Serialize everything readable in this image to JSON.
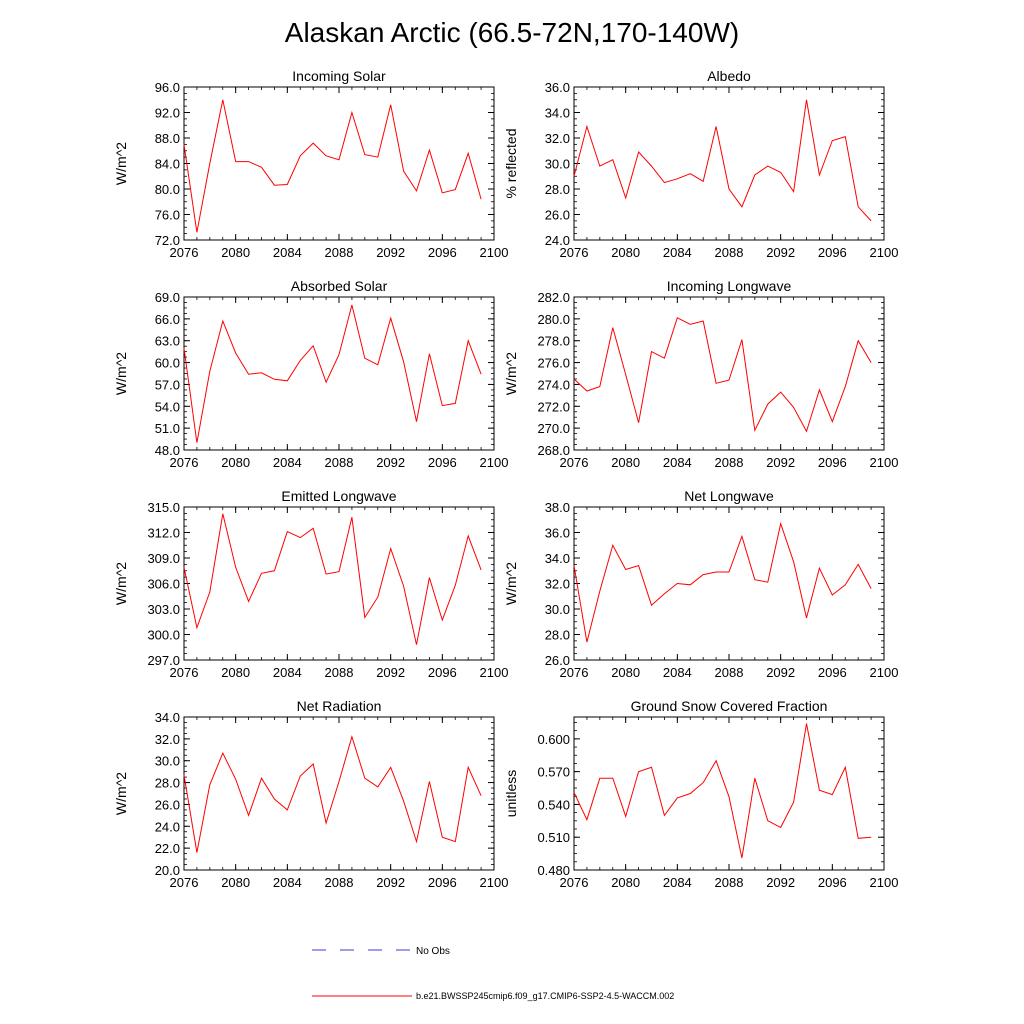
{
  "figure": {
    "title": "Alaskan Arctic (66.5-72N,170-140W)"
  },
  "legend": {
    "obs_label": "No Obs",
    "obs_color": "#3a3ad8",
    "model_label": "b.e21.BWSSP245cmip6.f09_g17.CMIP6-SSP2-4.5-WACCM.002",
    "model_color": "#ff0000"
  },
  "chart_data": [
    {
      "type": "line",
      "title": "Incoming Solar",
      "ylabel": "W/m^2",
      "xlim": [
        2076,
        2100
      ],
      "ylim": [
        72.0,
        96.0
      ],
      "xticks": [
        "2076",
        "2080",
        "2084",
        "2088",
        "2092",
        "2096",
        "2100"
      ],
      "yticks": [
        "72.0",
        "76.0",
        "80.0",
        "84.0",
        "88.0",
        "92.0",
        "96.0"
      ],
      "x": [
        2076,
        2077,
        2078,
        2079,
        2080,
        2081,
        2082,
        2083,
        2084,
        2085,
        2086,
        2087,
        2088,
        2089,
        2090,
        2091,
        2092,
        2093,
        2094,
        2095,
        2096,
        2097,
        2098,
        2099
      ],
      "series": [
        {
          "values": [
            87.0,
            73.2,
            84.0,
            94.0,
            84.3,
            84.3,
            83.4,
            80.6,
            80.7,
            85.2,
            87.2,
            85.2,
            84.6,
            92.0,
            85.4,
            85.0,
            93.2,
            82.8,
            79.7,
            86.1,
            79.4,
            79.9,
            85.6,
            78.4
          ]
        }
      ]
    },
    {
      "type": "line",
      "title": "Albedo",
      "ylabel": "% reflected",
      "xlim": [
        2076,
        2100
      ],
      "ylim": [
        24.0,
        36.0
      ],
      "xticks": [
        "2076",
        "2080",
        "2084",
        "2088",
        "2092",
        "2096",
        "2100"
      ],
      "yticks": [
        "24.0",
        "26.0",
        "28.0",
        "30.0",
        "32.0",
        "34.0",
        "36.0"
      ],
      "x": [
        2076,
        2077,
        2078,
        2079,
        2080,
        2081,
        2082,
        2083,
        2084,
        2085,
        2086,
        2087,
        2088,
        2089,
        2090,
        2091,
        2092,
        2093,
        2094,
        2095,
        2096,
        2097,
        2098,
        2099
      ],
      "series": [
        {
          "values": [
            29.0,
            32.9,
            29.8,
            30.3,
            27.3,
            30.9,
            29.8,
            28.5,
            28.8,
            29.2,
            28.6,
            32.9,
            28.0,
            26.6,
            29.1,
            29.8,
            29.3,
            27.8,
            35.0,
            29.1,
            31.8,
            32.1,
            26.6,
            25.5
          ]
        }
      ]
    },
    {
      "type": "line",
      "title": "Absorbed Solar",
      "ylabel": "W/m^2",
      "xlim": [
        2076,
        2100
      ],
      "ylim": [
        48.0,
        69.0
      ],
      "xticks": [
        "2076",
        "2080",
        "2084",
        "2088",
        "2092",
        "2096",
        "2100"
      ],
      "yticks": [
        "48.0",
        "51.0",
        "54.0",
        "57.0",
        "60.0",
        "63.0",
        "66.0",
        "69.0"
      ],
      "x": [
        2076,
        2077,
        2078,
        2079,
        2080,
        2081,
        2082,
        2083,
        2084,
        2085,
        2086,
        2087,
        2088,
        2089,
        2090,
        2091,
        2092,
        2093,
        2094,
        2095,
        2096,
        2097,
        2098,
        2099
      ],
      "series": [
        {
          "values": [
            62.0,
            49.0,
            58.8,
            65.7,
            61.3,
            58.4,
            58.6,
            57.7,
            57.5,
            60.3,
            62.3,
            57.3,
            61.1,
            67.9,
            60.6,
            59.7,
            66.1,
            60.1,
            51.9,
            61.2,
            54.1,
            54.4,
            63.0,
            58.4
          ]
        }
      ]
    },
    {
      "type": "line",
      "title": "Incoming Longwave",
      "ylabel": "W/m^2",
      "xlim": [
        2076,
        2100
      ],
      "ylim": [
        268.0,
        282.0
      ],
      "xticks": [
        "2076",
        "2080",
        "2084",
        "2088",
        "2092",
        "2096",
        "2100"
      ],
      "yticks": [
        "268.0",
        "270.0",
        "272.0",
        "274.0",
        "276.0",
        "278.0",
        "280.0",
        "282.0"
      ],
      "x": [
        2076,
        2077,
        2078,
        2079,
        2080,
        2081,
        2082,
        2083,
        2084,
        2085,
        2086,
        2087,
        2088,
        2089,
        2090,
        2091,
        2092,
        2093,
        2094,
        2095,
        2096,
        2097,
        2098,
        2099
      ],
      "series": [
        {
          "values": [
            274.5,
            273.4,
            273.8,
            279.2,
            274.9,
            270.5,
            277.0,
            276.4,
            280.1,
            279.5,
            279.8,
            274.1,
            274.4,
            278.1,
            269.8,
            272.2,
            273.3,
            271.9,
            269.7,
            273.5,
            270.6,
            273.8,
            278.0,
            276.0
          ]
        }
      ]
    },
    {
      "type": "line",
      "title": "Emitted Longwave",
      "ylabel": "W/m^2",
      "xlim": [
        2076,
        2100
      ],
      "ylim": [
        297.0,
        315.0
      ],
      "xticks": [
        "2076",
        "2080",
        "2084",
        "2088",
        "2092",
        "2096",
        "2100"
      ],
      "yticks": [
        "297.0",
        "300.0",
        "303.0",
        "306.0",
        "309.0",
        "312.0",
        "315.0"
      ],
      "x": [
        2076,
        2077,
        2078,
        2079,
        2080,
        2081,
        2082,
        2083,
        2084,
        2085,
        2086,
        2087,
        2088,
        2089,
        2090,
        2091,
        2092,
        2093,
        2094,
        2095,
        2096,
        2097,
        2098,
        2099
      ],
      "series": [
        {
          "values": [
            307.9,
            300.8,
            305.0,
            314.2,
            307.9,
            303.9,
            307.2,
            307.5,
            312.1,
            311.4,
            312.5,
            307.1,
            307.4,
            313.8,
            302.0,
            304.4,
            310.1,
            305.7,
            298.8,
            306.7,
            301.7,
            305.8,
            311.6,
            307.6
          ]
        }
      ]
    },
    {
      "type": "line",
      "title": "Net Longwave",
      "ylabel": "W/m^2",
      "xlim": [
        2076,
        2100
      ],
      "ylim": [
        26.0,
        38.0
      ],
      "xticks": [
        "2076",
        "2080",
        "2084",
        "2088",
        "2092",
        "2096",
        "2100"
      ],
      "yticks": [
        "26.0",
        "28.0",
        "30.0",
        "32.0",
        "34.0",
        "36.0",
        "38.0"
      ],
      "x": [
        2076,
        2077,
        2078,
        2079,
        2080,
        2081,
        2082,
        2083,
        2084,
        2085,
        2086,
        2087,
        2088,
        2089,
        2090,
        2091,
        2092,
        2093,
        2094,
        2095,
        2096,
        2097,
        2098,
        2099
      ],
      "series": [
        {
          "values": [
            33.4,
            27.4,
            31.4,
            35.0,
            33.1,
            33.4,
            30.3,
            31.2,
            32.0,
            31.9,
            32.7,
            32.9,
            32.9,
            35.7,
            32.3,
            32.1,
            36.7,
            33.7,
            29.3,
            33.2,
            31.1,
            31.9,
            33.5,
            31.6
          ]
        }
      ]
    },
    {
      "type": "line",
      "title": "Net Radiation",
      "ylabel": "W/m^2",
      "xlim": [
        2076,
        2100
      ],
      "ylim": [
        20.0,
        34.0
      ],
      "xticks": [
        "2076",
        "2080",
        "2084",
        "2088",
        "2092",
        "2096",
        "2100"
      ],
      "yticks": [
        "20.0",
        "22.0",
        "24.0",
        "26.0",
        "28.0",
        "30.0",
        "32.0",
        "34.0"
      ],
      "x": [
        2076,
        2077,
        2078,
        2079,
        2080,
        2081,
        2082,
        2083,
        2084,
        2085,
        2086,
        2087,
        2088,
        2089,
        2090,
        2091,
        2092,
        2093,
        2094,
        2095,
        2096,
        2097,
        2098,
        2099
      ],
      "series": [
        {
          "values": [
            28.7,
            21.6,
            27.8,
            30.7,
            28.3,
            25.0,
            28.4,
            26.5,
            25.5,
            28.6,
            29.7,
            24.3,
            28.1,
            32.2,
            28.4,
            27.6,
            29.4,
            26.3,
            22.6,
            28.1,
            23.0,
            22.6,
            29.4,
            26.8
          ]
        }
      ]
    },
    {
      "type": "line",
      "title": "Ground Snow Covered Fraction",
      "ylabel": "unitless",
      "xlim": [
        2076,
        2100
      ],
      "ylim": [
        0.48,
        0.62
      ],
      "xticks": [
        "2076",
        "2080",
        "2084",
        "2088",
        "2092",
        "2096",
        "2100"
      ],
      "yticks": [
        "0.480",
        "0.510",
        "0.540",
        "0.570",
        "0.600"
      ],
      "x": [
        2076,
        2077,
        2078,
        2079,
        2080,
        2081,
        2082,
        2083,
        2084,
        2085,
        2086,
        2087,
        2088,
        2089,
        2090,
        2091,
        2092,
        2093,
        2094,
        2095,
        2096,
        2097,
        2098,
        2099
      ],
      "series": [
        {
          "values": [
            0.551,
            0.526,
            0.564,
            0.564,
            0.529,
            0.57,
            0.574,
            0.53,
            0.546,
            0.55,
            0.56,
            0.58,
            0.547,
            0.491,
            0.564,
            0.525,
            0.519,
            0.542,
            0.614,
            0.553,
            0.549,
            0.574,
            0.509,
            0.51
          ]
        }
      ]
    }
  ]
}
